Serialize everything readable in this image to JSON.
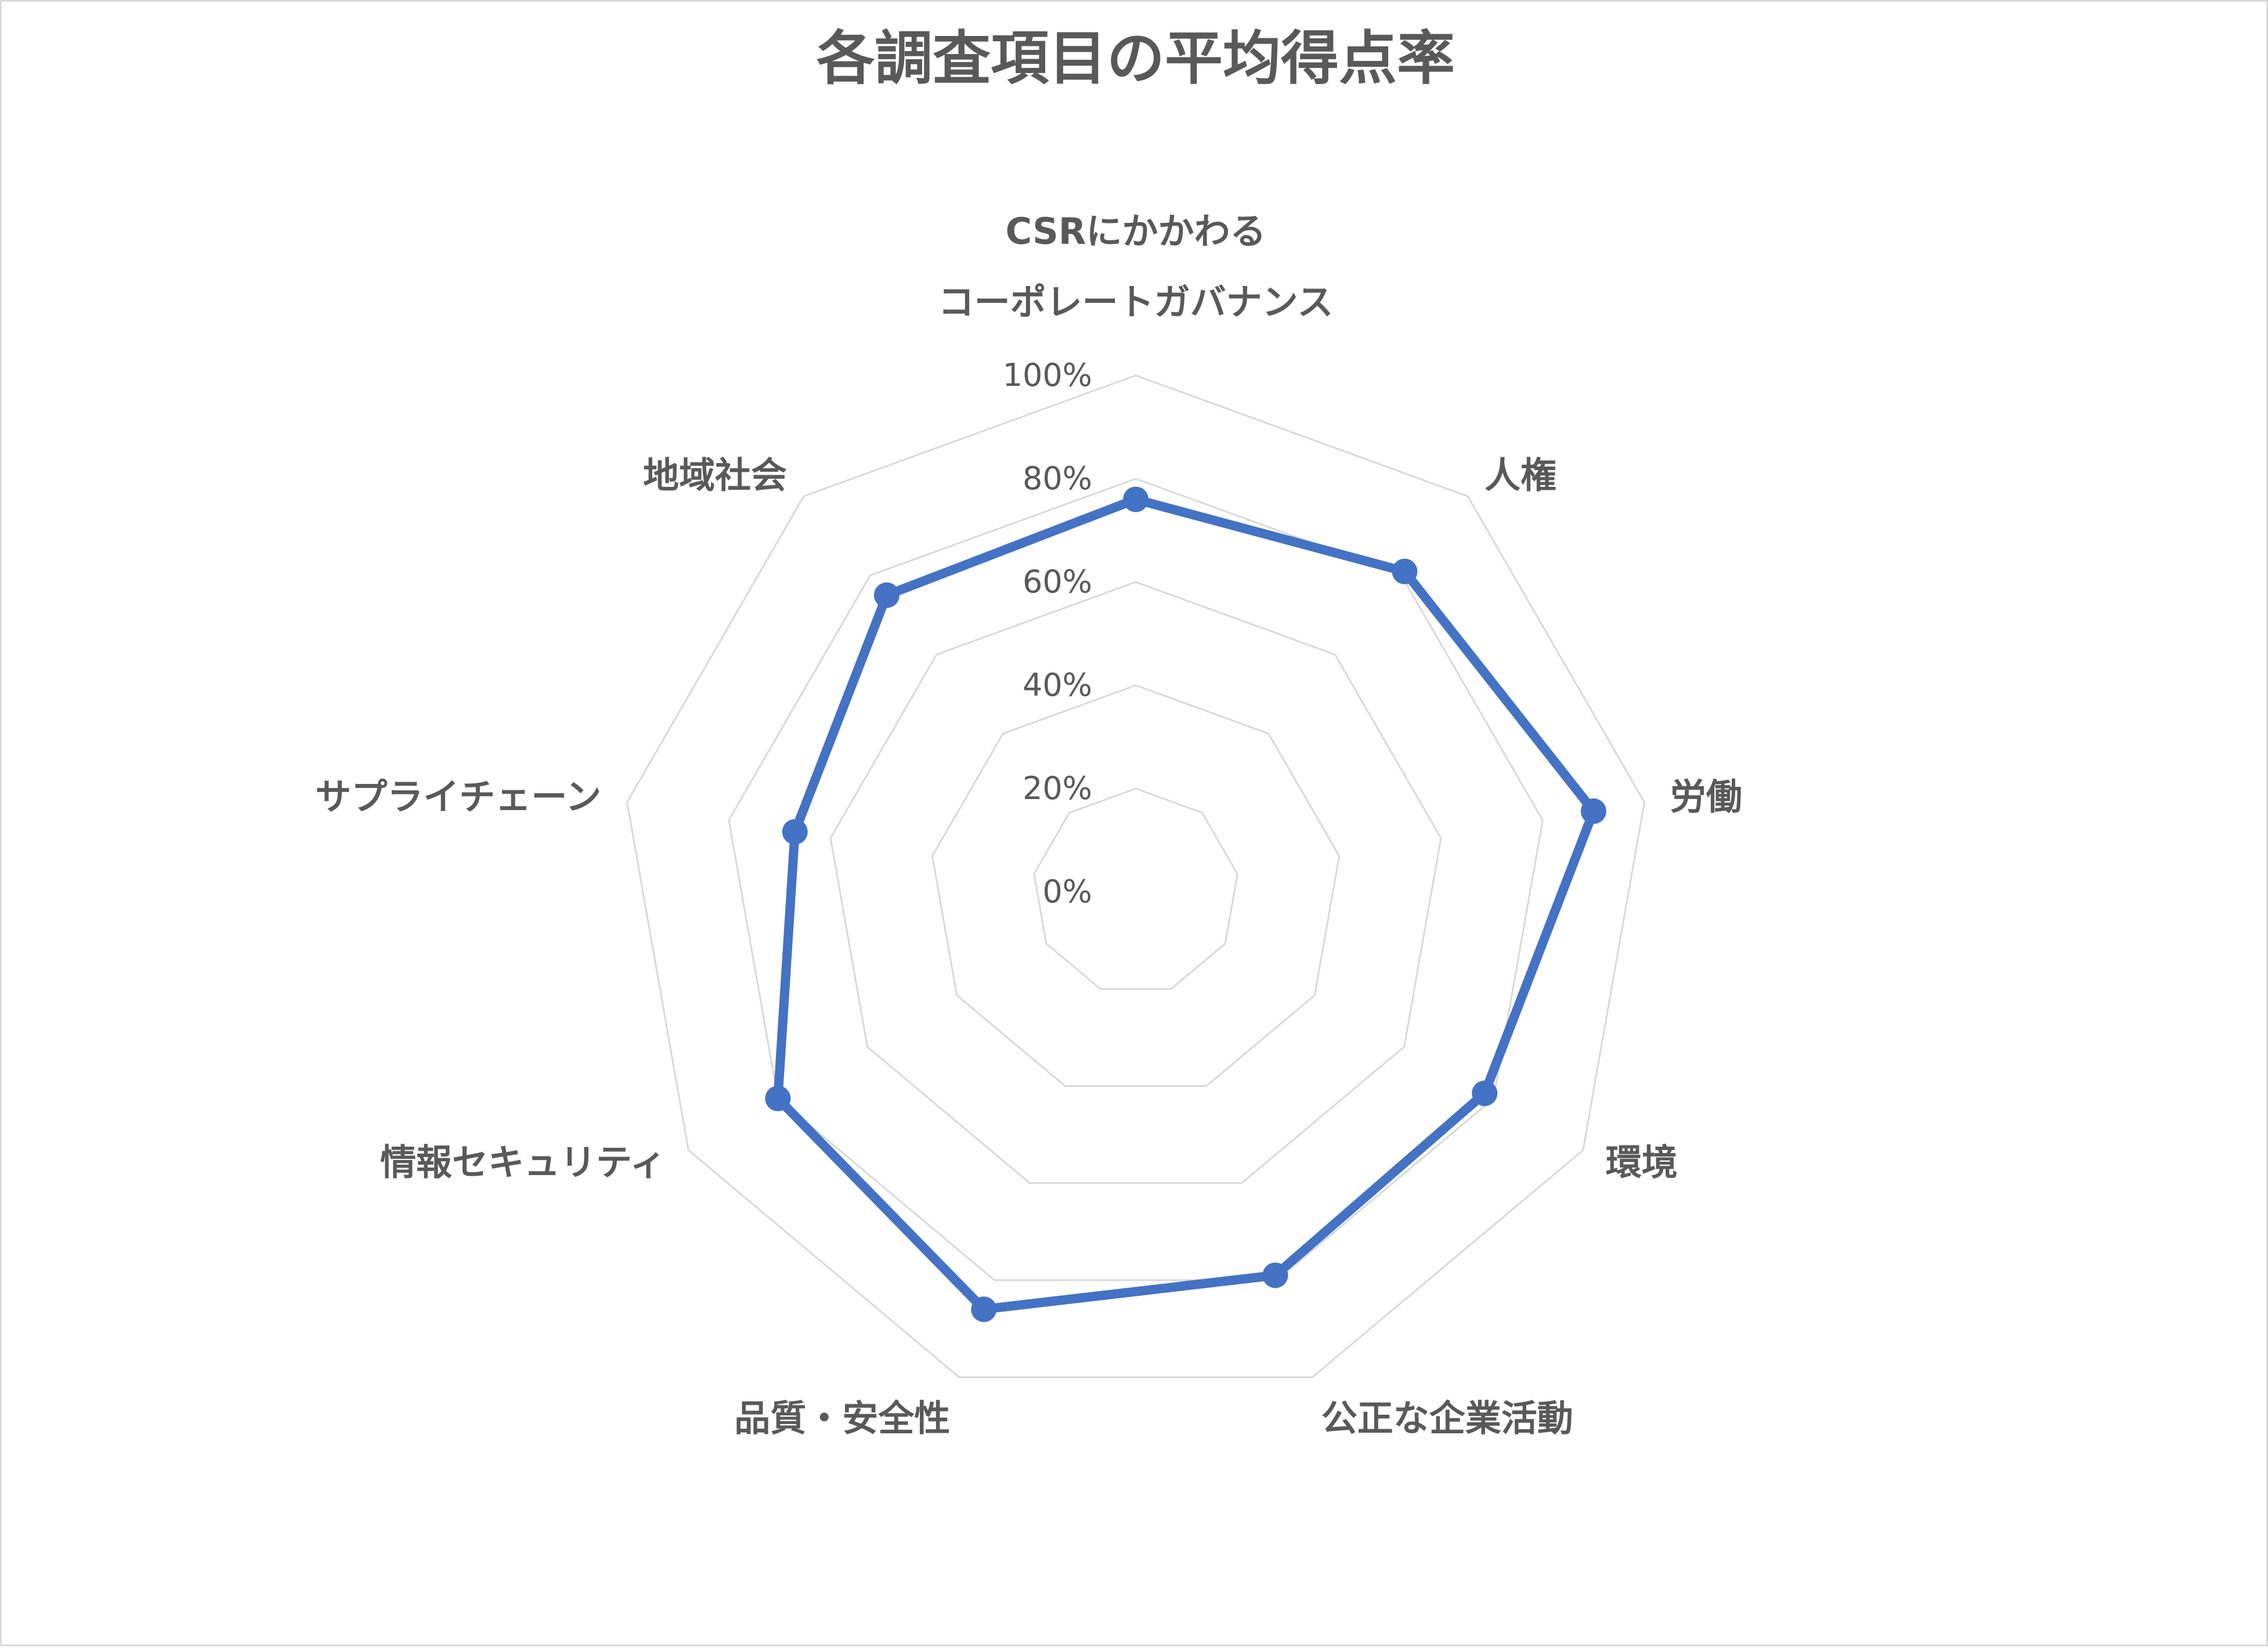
{
  "chart_data": {
    "type": "radar",
    "title": "各調査項目の平均得点率",
    "categories": [
      [
        "CSRにかかわる",
        "コーポレートガバナンス"
      ],
      [
        "人権"
      ],
      [
        "労働"
      ],
      [
        "環境"
      ],
      [
        "公正な企業活動"
      ],
      [
        "品質・安全性"
      ],
      [
        "情報セキュリティ"
      ],
      [
        "サプライチェーン"
      ],
      [
        "地域社会"
      ]
    ],
    "series": [
      {
        "values": [
          0.76,
          0.81,
          0.9,
          0.78,
          0.79,
          0.86,
          0.8,
          0.67,
          0.75
        ],
        "color": "#4472c4"
      }
    ],
    "ylim": [
      0,
      1
    ],
    "ticks": [
      "0%",
      "20%",
      "40%",
      "60%",
      "80%",
      "100%"
    ],
    "grid": true,
    "legend": "none"
  }
}
